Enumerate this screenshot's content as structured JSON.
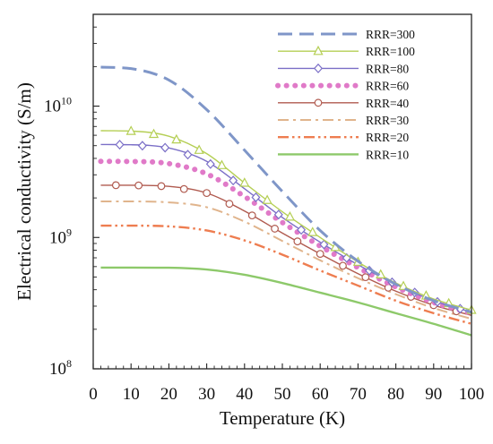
{
  "chart_data": {
    "type": "line",
    "title": "",
    "xlabel": "Temperature (K)",
    "ylabel": "Electrical conductivity (S/m)",
    "xlim": [
      0,
      100
    ],
    "ylim": [
      100000000,
      50000000000
    ],
    "yscale": "log",
    "grid": false,
    "legend": "top-right",
    "x_ticks": [
      0,
      10,
      20,
      30,
      40,
      50,
      60,
      70,
      80,
      90,
      100
    ],
    "x_tick_labels": [
      "0",
      "10",
      "20",
      "30",
      "40",
      "50",
      "60",
      "70",
      "80",
      "90",
      "100"
    ],
    "y_ticks": [
      {
        "value": 100000000,
        "base": "10",
        "exp": "8"
      },
      {
        "value": 1000000000,
        "base": "10",
        "exp": "9"
      },
      {
        "value": 10000000000,
        "base": "10",
        "exp": "10"
      }
    ],
    "x": [
      2,
      10,
      20,
      30,
      40,
      50,
      60,
      70,
      80,
      90,
      100
    ],
    "series": [
      {
        "name": "RRR=300",
        "color": "#7f96c8",
        "style": "dash",
        "marker": "none",
        "values": [
          19800000000,
          19300000000,
          15800000000,
          9400000000,
          4620000000,
          2240000000,
          1130000000,
          660000000,
          440000000,
          330000000,
          270000000
        ]
      },
      {
        "name": "RRR=100",
        "color": "#b5cf55",
        "style": "solid",
        "marker": "triangle",
        "values": [
          6500000000,
          6450000000,
          5900000000,
          4350000000,
          2600000000,
          1570000000,
          1000000000,
          650000000,
          450000000,
          340000000,
          280000000
        ]
      },
      {
        "name": "RRR=80",
        "color": "#7b6fc7",
        "style": "solid",
        "marker": "diamond",
        "values": [
          5100000000,
          5080000000,
          4800000000,
          3800000000,
          2350000000,
          1420000000,
          920000000,
          620000000,
          440000000,
          330000000,
          270000000
        ]
      },
      {
        "name": "RRR=60",
        "color": "#e07ac8",
        "style": "dot",
        "marker": "none",
        "values": [
          3800000000,
          3790000000,
          3650000000,
          3050000000,
          2050000000,
          1300000000,
          860000000,
          590000000,
          420000000,
          320000000,
          265000000
        ]
      },
      {
        "name": "RRR=40",
        "color": "#b05a4f",
        "style": "solid",
        "marker": "circle",
        "values": [
          2500000000,
          2500000000,
          2450000000,
          2180000000,
          1590000000,
          1080000000,
          750000000,
          530000000,
          390000000,
          305000000,
          255000000
        ]
      },
      {
        "name": "RRR=30",
        "color": "#e0b48c",
        "style": "dashdot",
        "marker": "none",
        "values": [
          1880000000,
          1880000000,
          1850000000,
          1700000000,
          1320000000,
          940000000,
          670000000,
          490000000,
          370000000,
          290000000,
          240000000
        ]
      },
      {
        "name": "RRR=20",
        "color": "#ee7d50",
        "style": "dashdotdot",
        "marker": "none",
        "values": [
          1230000000,
          1230000000,
          1215000000,
          1130000000,
          950000000,
          740000000,
          560000000,
          430000000,
          330000000,
          265000000,
          220000000
        ]
      },
      {
        "name": "RRR=10",
        "color": "#8dc96a",
        "style": "solid",
        "marker": "none",
        "values": [
          590000000,
          590000000,
          588000000,
          570000000,
          520000000,
          450000000,
          380000000,
          320000000,
          265000000,
          220000000,
          180000000
        ]
      }
    ]
  }
}
